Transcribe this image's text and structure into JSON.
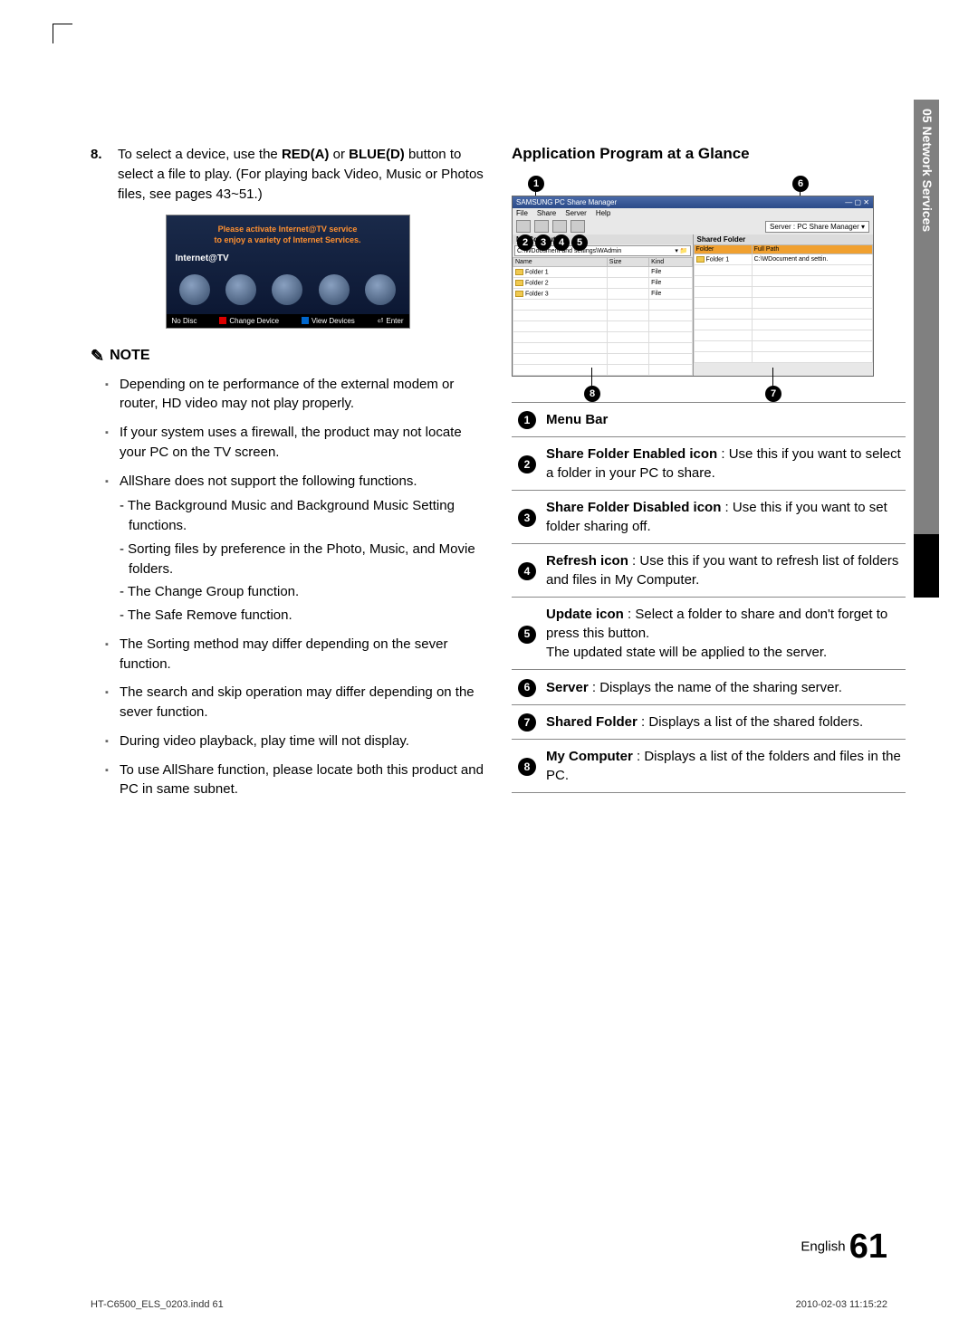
{
  "sideTab": "05   Network Services",
  "leftCol": {
    "step": {
      "num": "8.",
      "html": "To select a device, use the <b>RED(A)</b> or <b>BLUE(D)</b> button to select a file to play. (For playing back Video, Music or Photos files, see pages 43~51.)"
    },
    "tv": {
      "topLine1": "Please activate Internet@TV service",
      "topLine2": "to enjoy a variety of Internet Services.",
      "label": "Internet@TV",
      "bottom": {
        "noDisc": "No Disc",
        "change": "Change Device",
        "view": "View Devices",
        "enter": "Enter"
      }
    },
    "noteHeading": "NOTE",
    "notes": [
      {
        "text": "Depending on te performance of the external modem or router, HD video may not play properly."
      },
      {
        "text": "If your system uses a firewall, the product may not locate your PC on the TV screen."
      },
      {
        "text": "AllShare does not support the following functions.",
        "sub": [
          "- The Background Music and Background Music Setting functions.",
          "- Sorting files by preference in the Photo, Music, and Movie folders.",
          "- The Change Group function.",
          "- The Safe Remove function."
        ]
      },
      {
        "text": "The Sorting method may differ depending on the sever function."
      },
      {
        "text": "The search and skip operation may differ depending on the sever function."
      },
      {
        "text": "During video playback, play time will not display."
      },
      {
        "text": "To use AllShare function, please locate both this product and PC in same subnet."
      }
    ]
  },
  "rightCol": {
    "heading": "Application Program at a Glance",
    "window": {
      "title": "SAMSUNG PC Share Manager",
      "menus": [
        "File",
        "Share",
        "Server",
        "Help"
      ],
      "serverName": "Server : PC Share Manager  ▾",
      "leftPane": {
        "head": "My Computer",
        "path": "C:\\WDocument and settings\\WAdmin",
        "cols": [
          "Name",
          "Size",
          "Kind"
        ],
        "rows": [
          [
            "Folder 1",
            "",
            "File"
          ],
          [
            "Folder 2",
            "",
            "File"
          ],
          [
            "Folder 3",
            "",
            "File"
          ]
        ]
      },
      "rightPane": {
        "head": "Shared Folder",
        "cols": [
          "Folder",
          "Full Path"
        ],
        "rows": [
          [
            "Folder 1",
            "C:\\WDocument and settin."
          ]
        ]
      }
    },
    "legend": [
      {
        "n": "1",
        "html": "<b>Menu Bar</b>"
      },
      {
        "n": "2",
        "html": "<b>Share Folder Enabled icon</b> : Use this if you want to select a folder in your PC to share."
      },
      {
        "n": "3",
        "html": "<b>Share Folder Disabled icon</b> : Use this if you want to set folder sharing off."
      },
      {
        "n": "4",
        "html": "<b>Refresh icon</b> : Use this if you want to refresh list of folders and files in My Computer."
      },
      {
        "n": "5",
        "html": "<b>Update icon</b> : Select a folder to share and don't forget to press this button.<br>The updated state will be applied to the server."
      },
      {
        "n": "6",
        "html": "<b>Server</b> : Displays the name of the sharing server."
      },
      {
        "n": "7",
        "html": "<b>Shared Folder</b> : Displays a list of the shared folders."
      },
      {
        "n": "8",
        "html": "<b>My Computer</b> : Displays a list of the folders and files in the PC."
      }
    ]
  },
  "pageNum": {
    "lang": "English",
    "num": "61"
  },
  "footer": {
    "left": "HT-C6500_ELS_0203.indd   61",
    "right": "2010-02-03     11:15:22"
  },
  "colors": {
    "tvGradTop": "#1a2a4a",
    "tvGradBot": "#0a1530",
    "tvOrange": "#ff9030",
    "tableOrange": "#f0a030",
    "sidebar": "#808080"
  }
}
